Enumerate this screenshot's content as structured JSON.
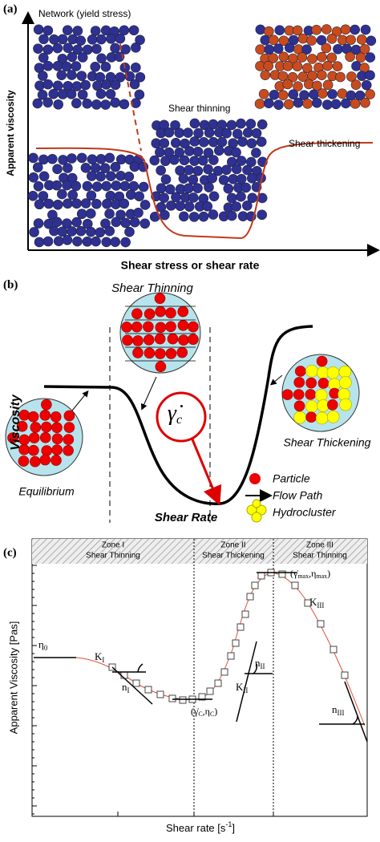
{
  "panel_a": {
    "label": "(a)",
    "network": "Network (yield stress)",
    "thinning": "Shear thinning",
    "thickening": "Shear thickening",
    "y_axis": "Apparent viscosity",
    "x_axis": "Shear stress or shear rate"
  },
  "panel_b": {
    "label": "(b)",
    "thinning": "Shear Thinning",
    "y_axis": "Viscosity",
    "equilibrium": "Equilibrium",
    "x_axis": "Shear Rate",
    "thickening": "Shear Thickening",
    "critical": {
      "symbol": "γ̇",
      "subscript": "c"
    },
    "legend": {
      "particle": "Particle",
      "flow": "Flow Path",
      "cluster": "Hydrocluster"
    }
  },
  "panel_c": {
    "label": "(c)",
    "zones": [
      {
        "name": "Zone I",
        "behavior": "Shear Thinning"
      },
      {
        "name": "Zone II",
        "behavior": "Shear Thickening"
      },
      {
        "name": "Zone III",
        "behavior": "Shear Thinning"
      }
    ],
    "eta0": {
      "symbol": "η",
      "subscript": "0"
    },
    "k1": {
      "symbol": "K",
      "subscript": "I"
    },
    "n1": {
      "symbol": "n",
      "subscript": "I"
    },
    "critical": {
      "open": "(",
      "gamma": "γ̇",
      "gsub": "C",
      "comma": ",",
      "eta": "η",
      "esub": "C",
      "close": ")"
    },
    "k2": {
      "symbol": "K",
      "subscript": "II"
    },
    "n2": {
      "symbol": "n",
      "subscript": "II"
    },
    "max": {
      "open": "(",
      "gamma": "γ̇",
      "gsub": "max",
      "comma": ",",
      "eta": "η",
      "esub": "max",
      "close": ")"
    },
    "k3": {
      "symbol": "K",
      "subscript": "III"
    },
    "n3": {
      "symbol": "n",
      "subscript": "III"
    },
    "y_axis": "Apparent Viscosity [Pas]",
    "x_axis": {
      "text": "Shear rate [s",
      "sup": "-1",
      "close": "]"
    }
  }
}
